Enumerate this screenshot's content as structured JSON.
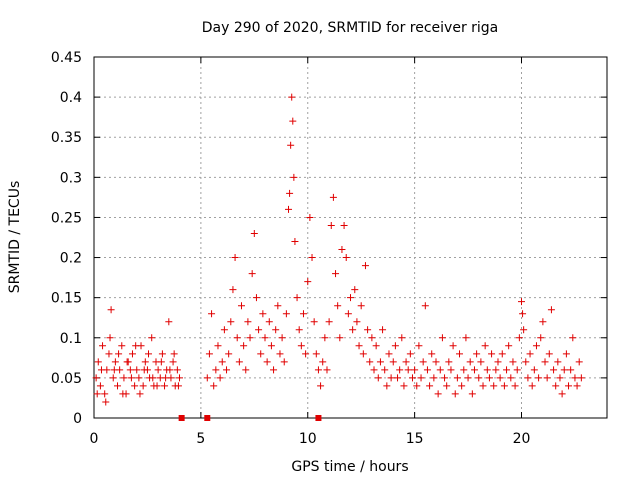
{
  "chart_data": {
    "type": "scatter",
    "title": "Day 290 of 2020, SRMTID for receiver riga",
    "xlabel": "GPS time / hours",
    "ylabel": "SRMTID / TECUs",
    "xlim": [
      0,
      24
    ],
    "ylim": [
      0,
      0.45
    ],
    "x_ticks": [
      "0",
      "5",
      "10",
      "15",
      "20"
    ],
    "y_ticks": [
      "0",
      "0.05",
      "0.1",
      "0.15",
      "0.2",
      "0.25",
      "0.3",
      "0.35",
      "0.4",
      "0.45"
    ],
    "grid": true,
    "marker": "+",
    "color": "#e00000",
    "series": [
      {
        "name": "SRMTID",
        "points": [
          [
            0.1,
            0.05
          ],
          [
            0.2,
            0.07
          ],
          [
            0.3,
            0.04
          ],
          [
            0.4,
            0.09
          ],
          [
            0.5,
            0.03
          ],
          [
            0.6,
            0.06
          ],
          [
            0.7,
            0.08
          ],
          [
            0.8,
            0.135
          ],
          [
            0.9,
            0.05
          ],
          [
            1.0,
            0.07
          ],
          [
            1.1,
            0.04
          ],
          [
            1.2,
            0.06
          ],
          [
            1.3,
            0.09
          ],
          [
            1.4,
            0.05
          ],
          [
            1.5,
            0.03
          ],
          [
            1.6,
            0.07
          ],
          [
            1.7,
            0.06
          ],
          [
            1.8,
            0.08
          ],
          [
            1.9,
            0.04
          ],
          [
            2.0,
            0.06
          ],
          [
            2.1,
            0.05
          ],
          [
            2.2,
            0.09
          ],
          [
            2.3,
            0.04
          ],
          [
            2.4,
            0.07
          ],
          [
            2.5,
            0.06
          ],
          [
            2.6,
            0.05
          ],
          [
            2.7,
            0.1
          ],
          [
            2.8,
            0.04
          ],
          [
            2.9,
            0.07
          ],
          [
            3.0,
            0.06
          ],
          [
            3.1,
            0.05
          ],
          [
            3.2,
            0.08
          ],
          [
            3.3,
            0.04
          ],
          [
            3.4,
            0.06
          ],
          [
            3.5,
            0.12
          ],
          [
            3.6,
            0.05
          ],
          [
            3.7,
            0.07
          ],
          [
            3.8,
            0.04
          ],
          [
            3.9,
            0.06
          ],
          [
            4.0,
            0.05
          ],
          [
            0.15,
            0.03
          ],
          [
            0.35,
            0.06
          ],
          [
            0.55,
            0.02
          ],
          [
            0.75,
            0.1
          ],
          [
            0.95,
            0.06
          ],
          [
            1.15,
            0.08
          ],
          [
            1.35,
            0.03
          ],
          [
            1.55,
            0.07
          ],
          [
            1.75,
            0.05
          ],
          [
            1.95,
            0.09
          ],
          [
            2.15,
            0.03
          ],
          [
            2.35,
            0.06
          ],
          [
            2.55,
            0.08
          ],
          [
            2.75,
            0.05
          ],
          [
            2.95,
            0.04
          ],
          [
            3.15,
            0.07
          ],
          [
            3.35,
            0.05
          ],
          [
            3.55,
            0.06
          ],
          [
            3.75,
            0.08
          ],
          [
            3.95,
            0.04
          ],
          [
            5.3,
            0.05
          ],
          [
            5.4,
            0.08
          ],
          [
            5.5,
            0.13
          ],
          [
            5.6,
            0.04
          ],
          [
            5.7,
            0.06
          ],
          [
            5.8,
            0.09
          ],
          [
            5.9,
            0.05
          ],
          [
            6.0,
            0.07
          ],
          [
            6.1,
            0.11
          ],
          [
            6.2,
            0.06
          ],
          [
            6.3,
            0.08
          ],
          [
            6.4,
            0.12
          ],
          [
            6.5,
            0.16
          ],
          [
            6.6,
            0.2
          ],
          [
            6.7,
            0.1
          ],
          [
            6.8,
            0.07
          ],
          [
            6.9,
            0.14
          ],
          [
            7.0,
            0.09
          ],
          [
            7.1,
            0.06
          ],
          [
            7.2,
            0.12
          ],
          [
            7.3,
            0.1
          ],
          [
            7.4,
            0.18
          ],
          [
            7.5,
            0.23
          ],
          [
            7.6,
            0.15
          ],
          [
            7.7,
            0.11
          ],
          [
            7.8,
            0.08
          ],
          [
            7.9,
            0.13
          ],
          [
            8.0,
            0.1
          ],
          [
            8.1,
            0.07
          ],
          [
            8.2,
            0.12
          ],
          [
            8.3,
            0.09
          ],
          [
            8.4,
            0.06
          ],
          [
            8.5,
            0.11
          ],
          [
            8.6,
            0.14
          ],
          [
            8.7,
            0.08
          ],
          [
            8.8,
            0.1
          ],
          [
            8.9,
            0.07
          ],
          [
            9.0,
            0.13
          ],
          [
            9.1,
            0.26
          ],
          [
            9.15,
            0.28
          ],
          [
            9.2,
            0.34
          ],
          [
            9.25,
            0.4
          ],
          [
            9.3,
            0.37
          ],
          [
            9.35,
            0.3
          ],
          [
            9.4,
            0.22
          ],
          [
            9.5,
            0.15
          ],
          [
            9.6,
            0.11
          ],
          [
            9.7,
            0.09
          ],
          [
            9.8,
            0.13
          ],
          [
            9.9,
            0.08
          ],
          [
            10.0,
            0.17
          ],
          [
            10.1,
            0.25
          ],
          [
            10.2,
            0.2
          ],
          [
            10.3,
            0.12
          ],
          [
            10.4,
            0.08
          ],
          [
            10.5,
            0.06
          ],
          [
            10.6,
            0.04
          ],
          [
            10.7,
            0.07
          ],
          [
            10.8,
            0.1
          ],
          [
            10.9,
            0.06
          ],
          [
            11.0,
            0.12
          ],
          [
            11.1,
            0.24
          ],
          [
            11.2,
            0.275
          ],
          [
            11.3,
            0.18
          ],
          [
            11.4,
            0.14
          ],
          [
            11.5,
            0.1
          ],
          [
            11.6,
            0.21
          ],
          [
            11.7,
            0.24
          ],
          [
            11.8,
            0.2
          ],
          [
            11.9,
            0.13
          ],
          [
            12.0,
            0.15
          ],
          [
            12.1,
            0.11
          ],
          [
            12.2,
            0.16
          ],
          [
            12.3,
            0.12
          ],
          [
            12.4,
            0.09
          ],
          [
            12.5,
            0.14
          ],
          [
            12.6,
            0.08
          ],
          [
            12.7,
            0.19
          ],
          [
            12.8,
            0.11
          ],
          [
            12.9,
            0.07
          ],
          [
            13.0,
            0.1
          ],
          [
            13.1,
            0.06
          ],
          [
            13.2,
            0.09
          ],
          [
            13.3,
            0.05
          ],
          [
            13.4,
            0.07
          ],
          [
            13.5,
            0.11
          ],
          [
            13.6,
            0.06
          ],
          [
            13.7,
            0.04
          ],
          [
            13.8,
            0.08
          ],
          [
            13.9,
            0.05
          ],
          [
            14.0,
            0.07
          ],
          [
            14.1,
            0.09
          ],
          [
            14.2,
            0.05
          ],
          [
            14.3,
            0.06
          ],
          [
            14.4,
            0.1
          ],
          [
            14.5,
            0.04
          ],
          [
            14.6,
            0.07
          ],
          [
            14.7,
            0.06
          ],
          [
            14.8,
            0.08
          ],
          [
            14.9,
            0.05
          ],
          [
            15.0,
            0.06
          ],
          [
            15.1,
            0.04
          ],
          [
            15.2,
            0.09
          ],
          [
            15.3,
            0.05
          ],
          [
            15.4,
            0.07
          ],
          [
            15.5,
            0.14
          ],
          [
            15.6,
            0.06
          ],
          [
            15.7,
            0.04
          ],
          [
            15.8,
            0.08
          ],
          [
            15.9,
            0.05
          ],
          [
            16.0,
            0.07
          ],
          [
            16.1,
            0.03
          ],
          [
            16.2,
            0.06
          ],
          [
            16.3,
            0.1
          ],
          [
            16.4,
            0.05
          ],
          [
            16.5,
            0.04
          ],
          [
            16.6,
            0.07
          ],
          [
            16.7,
            0.06
          ],
          [
            16.8,
            0.09
          ],
          [
            16.9,
            0.03
          ],
          [
            17.0,
            0.05
          ],
          [
            17.1,
            0.08
          ],
          [
            17.2,
            0.04
          ],
          [
            17.3,
            0.06
          ],
          [
            17.4,
            0.1
          ],
          [
            17.5,
            0.05
          ],
          [
            17.6,
            0.07
          ],
          [
            17.7,
            0.03
          ],
          [
            17.8,
            0.06
          ],
          [
            17.9,
            0.08
          ],
          [
            18.0,
            0.05
          ],
          [
            18.1,
            0.07
          ],
          [
            18.2,
            0.04
          ],
          [
            18.3,
            0.09
          ],
          [
            18.4,
            0.06
          ],
          [
            18.5,
            0.05
          ],
          [
            18.6,
            0.08
          ],
          [
            18.7,
            0.04
          ],
          [
            18.8,
            0.06
          ],
          [
            18.9,
            0.07
          ],
          [
            19.0,
            0.05
          ],
          [
            19.1,
            0.08
          ],
          [
            19.2,
            0.04
          ],
          [
            19.3,
            0.06
          ],
          [
            19.4,
            0.09
          ],
          [
            19.5,
            0.05
          ],
          [
            19.6,
            0.07
          ],
          [
            19.7,
            0.04
          ],
          [
            19.8,
            0.06
          ],
          [
            19.9,
            0.1
          ],
          [
            20.0,
            0.145
          ],
          [
            20.05,
            0.13
          ],
          [
            20.1,
            0.11
          ],
          [
            20.2,
            0.07
          ],
          [
            20.3,
            0.05
          ],
          [
            20.4,
            0.08
          ],
          [
            20.5,
            0.04
          ],
          [
            20.6,
            0.06
          ],
          [
            20.7,
            0.09
          ],
          [
            20.8,
            0.05
          ],
          [
            20.9,
            0.1
          ],
          [
            21.0,
            0.12
          ],
          [
            21.1,
            0.07
          ],
          [
            21.2,
            0.05
          ],
          [
            21.3,
            0.08
          ],
          [
            21.4,
            0.135
          ],
          [
            21.5,
            0.06
          ],
          [
            21.6,
            0.04
          ],
          [
            21.7,
            0.07
          ],
          [
            21.8,
            0.05
          ],
          [
            21.9,
            0.03
          ],
          [
            22.0,
            0.06
          ],
          [
            22.1,
            0.08
          ],
          [
            22.2,
            0.04
          ],
          [
            22.3,
            0.06
          ],
          [
            22.4,
            0.1
          ],
          [
            22.5,
            0.05
          ],
          [
            22.6,
            0.04
          ],
          [
            22.7,
            0.07
          ],
          [
            22.8,
            0.05
          ]
        ]
      }
    ],
    "baseline_markers": [
      4.1,
      5.3,
      10.5
    ]
  }
}
